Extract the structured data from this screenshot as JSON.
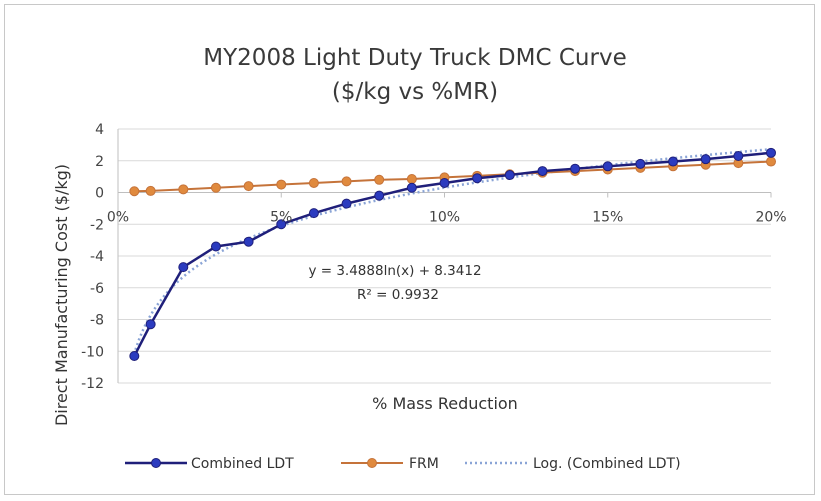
{
  "chart_data": {
    "type": "line",
    "title": "MY2008 Light Duty Truck DMC Curve",
    "subtitle": "($/kg vs %MR)",
    "xlabel": "% Mass Reduction",
    "ylabel": "Direct Manufacturing Cost ($/kg)",
    "xlim": [
      0,
      0.2
    ],
    "ylim": [
      -12,
      4
    ],
    "x_ticks": [
      0,
      0.05,
      0.1,
      0.15,
      0.2
    ],
    "x_tick_labels": [
      "0%",
      "5%",
      "10%",
      "15%",
      "20%"
    ],
    "y_ticks": [
      4,
      2,
      0,
      -2,
      -4,
      -6,
      -8,
      -10,
      -12
    ],
    "y_tick_labels": [
      "4",
      "2",
      "0",
      "-2",
      "-4",
      "-6",
      "-8",
      "-10",
      "-12"
    ],
    "grid": "horizontal",
    "legend_position": "bottom",
    "series": [
      {
        "name": "Combined LDT",
        "color": "#1f1f7a",
        "marker_color": "#2b3bbf",
        "x": [
          0.005,
          0.01,
          0.02,
          0.03,
          0.04,
          0.05,
          0.06,
          0.07,
          0.08,
          0.09,
          0.1,
          0.11,
          0.12,
          0.13,
          0.14,
          0.15,
          0.16,
          0.17,
          0.18,
          0.19,
          0.2
        ],
        "values": [
          -10.3,
          -8.3,
          -4.7,
          -3.4,
          -3.1,
          -2.0,
          -1.3,
          -0.7,
          -0.2,
          0.3,
          0.6,
          0.9,
          1.1,
          1.35,
          1.5,
          1.65,
          1.8,
          1.95,
          2.1,
          2.3,
          2.5
        ]
      },
      {
        "name": "FRM",
        "color": "#c5733a",
        "marker_color": "#e08a3e",
        "x": [
          0.005,
          0.01,
          0.02,
          0.03,
          0.04,
          0.05,
          0.06,
          0.07,
          0.08,
          0.09,
          0.1,
          0.11,
          0.12,
          0.13,
          0.14,
          0.15,
          0.16,
          0.17,
          0.18,
          0.19,
          0.2
        ],
        "values": [
          0.08,
          0.1,
          0.2,
          0.3,
          0.4,
          0.5,
          0.6,
          0.7,
          0.8,
          0.85,
          0.95,
          1.05,
          1.15,
          1.25,
          1.35,
          1.45,
          1.55,
          1.65,
          1.75,
          1.85,
          1.95
        ]
      },
      {
        "name": "Log. (Combined LDT)",
        "color": "#8aa4d6",
        "style": "dotted",
        "trendline": {
          "form": "log",
          "a": 3.4888,
          "b": 8.3412
        }
      }
    ],
    "annotations": [
      "y = 3.4888ln(x) + 8.3412",
      "R² = 0.9932"
    ]
  }
}
